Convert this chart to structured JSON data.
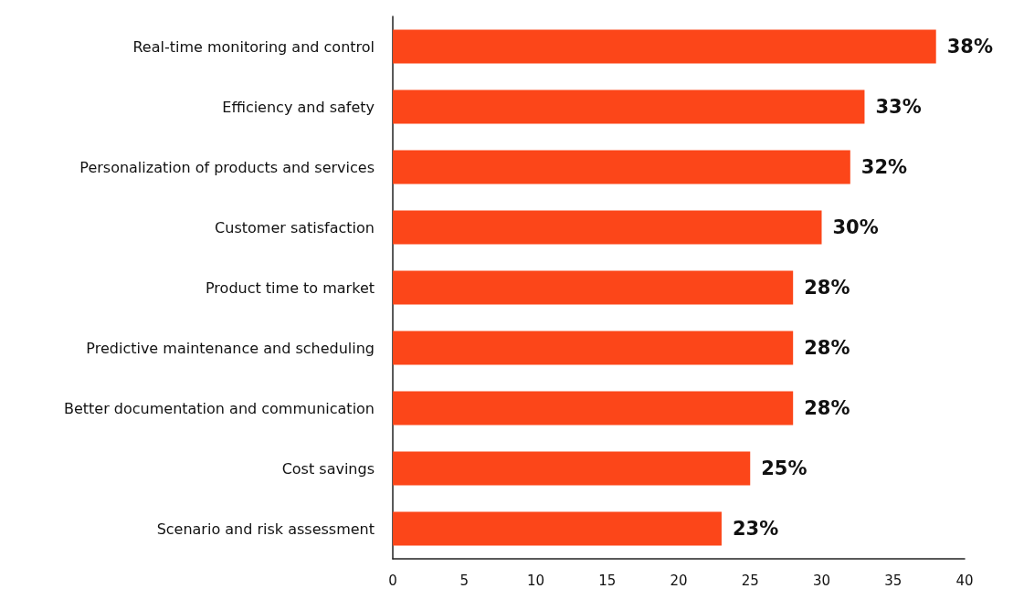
{
  "chart_data": {
    "type": "bar",
    "orientation": "horizontal",
    "categories": [
      "Real-time monitoring and control",
      "Efficiency and safety",
      "Personalization of products and services",
      "Customer satisfaction",
      "Product time to market",
      "Predictive maintenance and scheduling",
      "Better documentation and communication",
      "Cost savings",
      "Scenario and risk assessment"
    ],
    "values": [
      38,
      33,
      32,
      30,
      28,
      28,
      28,
      25,
      23
    ],
    "value_labels": [
      "38%",
      "33%",
      "32%",
      "30%",
      "28%",
      "28%",
      "28%",
      "25%",
      "23%"
    ],
    "color": "#fc4619",
    "xlim": [
      0,
      40
    ],
    "xticks": [
      0,
      5,
      10,
      15,
      20,
      25,
      30,
      35,
      40
    ]
  }
}
